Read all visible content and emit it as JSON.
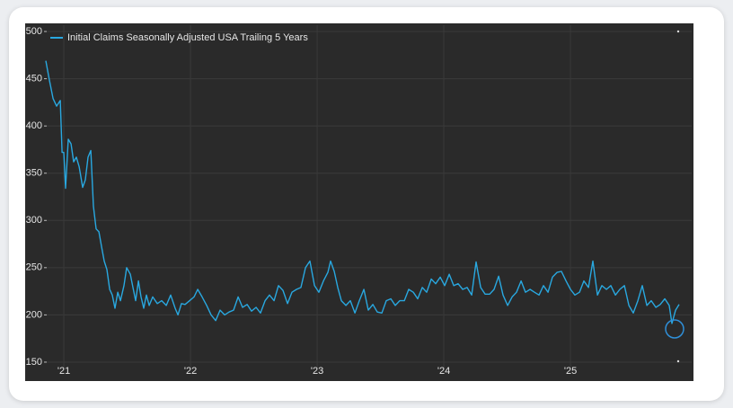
{
  "chart_data": {
    "type": "line",
    "series": [
      {
        "name": "Initial Claims Seasonally Adjusted USA Trailing 5 Years",
        "color": "#29a8e0",
        "values": [
          469,
          448,
          429,
          421,
          427,
          372,
          372,
          334,
          386,
          381,
          362,
          367,
          357,
          335,
          343,
          367,
          374,
          315,
          291,
          288,
          272,
          257,
          248,
          227,
          221,
          207,
          224,
          215,
          231,
          250,
          243,
          229,
          215,
          236,
          219,
          207,
          221,
          210,
          219,
          212,
          215,
          210,
          221,
          207,
          200,
          212,
          211,
          215,
          219,
          227,
          219,
          210,
          200,
          194,
          205,
          200,
          203,
          205,
          219,
          208,
          211,
          204,
          208,
          202,
          215,
          221,
          215,
          231,
          226,
          212,
          224,
          227,
          229,
          250,
          257,
          231,
          224,
          236,
          245,
          257,
          246,
          229,
          215,
          210,
          215,
          202,
          215,
          227,
          205,
          211,
          203,
          202,
          215,
          217,
          210,
          215,
          215,
          227,
          224,
          217,
          229,
          224,
          238,
          233,
          240,
          231,
          243,
          231,
          233,
          227,
          229,
          221,
          256,
          229,
          222,
          222,
          227,
          241,
          221,
          210,
          219,
          224,
          236,
          224,
          227,
          224,
          221,
          231,
          224,
          240,
          245,
          246,
          236,
          227,
          221,
          224,
          236,
          229,
          257,
          221,
          231,
          227,
          231,
          221,
          227,
          231,
          210,
          202,
          215,
          231,
          210,
          215,
          208,
          211,
          217,
          210,
          191,
          205,
          211
        ]
      }
    ],
    "x": [
      2020.858,
      2020.887,
      2020.915,
      2020.943,
      2020.972,
      2020.986,
      2021.0,
      2021.014,
      2021.035,
      2021.057,
      2021.078,
      2021.099,
      2021.121,
      2021.149,
      2021.17,
      2021.191,
      2021.213,
      2021.234,
      2021.255,
      2021.277,
      2021.298,
      2021.319,
      2021.34,
      2021.362,
      2021.383,
      2021.404,
      2021.426,
      2021.447,
      2021.475,
      2021.496,
      2021.525,
      2021.546,
      2021.567,
      2021.589,
      2021.61,
      2021.631,
      2021.652,
      2021.674,
      2021.702,
      2021.738,
      2021.773,
      2021.809,
      2021.844,
      2021.879,
      2021.901,
      2021.929,
      2021.957,
      2021.993,
      2022.028,
      2022.057,
      2022.092,
      2022.128,
      2022.163,
      2022.199,
      2022.234,
      2022.27,
      2022.305,
      2022.34,
      2022.376,
      2022.411,
      2022.447,
      2022.482,
      2022.518,
      2022.553,
      2022.589,
      2022.624,
      2022.66,
      2022.695,
      2022.73,
      2022.766,
      2022.801,
      2022.837,
      2022.872,
      2022.908,
      2022.943,
      2022.979,
      2023.014,
      2023.05,
      2023.085,
      2023.106,
      2023.135,
      2023.163,
      2023.191,
      2023.227,
      2023.262,
      2023.298,
      2023.333,
      2023.369,
      2023.404,
      2023.44,
      2023.475,
      2023.511,
      2023.546,
      2023.582,
      2023.617,
      2023.652,
      2023.688,
      2023.723,
      2023.759,
      2023.794,
      2023.83,
      2023.865,
      2023.901,
      2023.936,
      2023.972,
      2024.007,
      2024.043,
      2024.078,
      2024.113,
      2024.149,
      2024.184,
      2024.22,
      2024.255,
      2024.291,
      2024.326,
      2024.362,
      2024.397,
      2024.433,
      2024.468,
      2024.504,
      2024.539,
      2024.574,
      2024.61,
      2024.645,
      2024.681,
      2024.716,
      2024.752,
      2024.787,
      2024.823,
      2024.858,
      2024.894,
      2024.929,
      2024.965,
      2025.0,
      2025.035,
      2025.071,
      2025.106,
      2025.142,
      2025.177,
      2025.213,
      2025.248,
      2025.284,
      2025.319,
      2025.355,
      2025.39,
      2025.426,
      2025.461,
      2025.496,
      2025.532,
      2025.567,
      2025.603,
      2025.638,
      2025.674,
      2025.709,
      2025.745,
      2025.78,
      2025.801,
      2025.83,
      2025.858
    ],
    "xlim": [
      2020.865,
      2025.957
    ],
    "xticks": [
      {
        "value": 2021,
        "label": "'21"
      },
      {
        "value": 2022,
        "label": "'22"
      },
      {
        "value": 2023,
        "label": "'23"
      },
      {
        "value": 2024,
        "label": "'24"
      },
      {
        "value": 2025,
        "label": "'25"
      }
    ],
    "ylim": [
      143.3,
      506.7
    ],
    "yticks": [
      150,
      200,
      250,
      300,
      350,
      400,
      450,
      500
    ],
    "grid": true,
    "legend": "top-left"
  }
}
